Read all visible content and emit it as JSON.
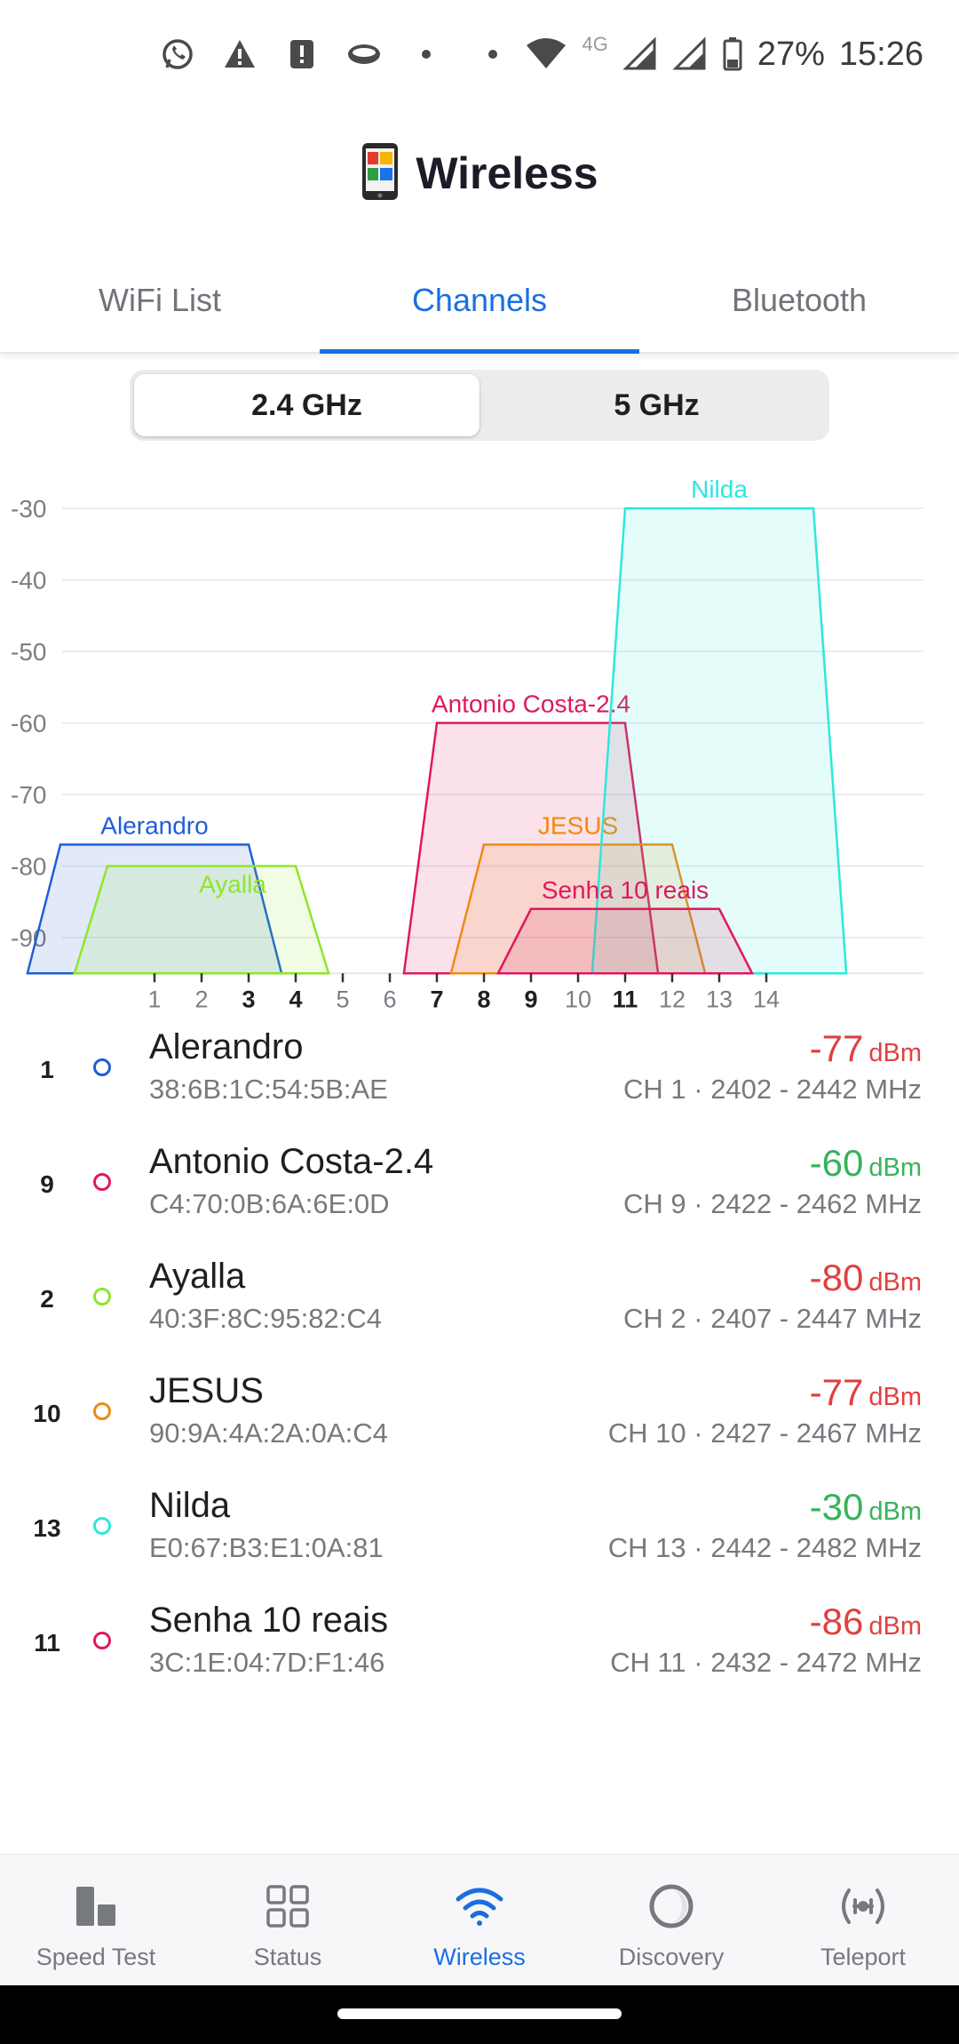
{
  "status_bar": {
    "battery": "27%",
    "time": "15:26",
    "network_type": "4G"
  },
  "header": {
    "title": "Wireless"
  },
  "tabs": [
    {
      "label": "WiFi List",
      "active": false
    },
    {
      "label": "Channels",
      "active": true
    },
    {
      "label": "Bluetooth",
      "active": false
    }
  ],
  "band_selector": [
    {
      "label": "2.4 GHz",
      "active": true
    },
    {
      "label": "5 GHz",
      "active": false
    }
  ],
  "chart_data": {
    "type": "area",
    "ylim": [
      -95,
      -30
    ],
    "yticks": [
      -30,
      -40,
      -50,
      -60,
      -70,
      -80,
      -90
    ],
    "xticks": [
      {
        "label": "1",
        "ch": 1,
        "bold": false
      },
      {
        "label": "2",
        "ch": 2,
        "bold": false
      },
      {
        "label": "3",
        "ch": 3,
        "bold": true
      },
      {
        "label": "4",
        "ch": 4,
        "bold": true
      },
      {
        "label": "5",
        "ch": 5,
        "bold": false
      },
      {
        "label": "6",
        "ch": 6,
        "bold": false
      },
      {
        "label": "7",
        "ch": 7,
        "bold": true
      },
      {
        "label": "8",
        "ch": 8,
        "bold": true
      },
      {
        "label": "9",
        "ch": 9,
        "bold": true
      },
      {
        "label": "10",
        "ch": 10,
        "bold": false
      },
      {
        "label": "11",
        "ch": 11,
        "bold": true
      },
      {
        "label": "12",
        "ch": 12,
        "bold": false
      },
      {
        "label": "13",
        "ch": 13,
        "bold": false
      },
      {
        "label": "14",
        "ch": 14,
        "bold": false
      }
    ],
    "series": [
      {
        "name": "Alerandro",
        "channel": 1,
        "signal": -77,
        "color": "#1e5ed8"
      },
      {
        "name": "Antonio Costa-2.4",
        "channel": 9,
        "signal": -60,
        "color": "#e0185f"
      },
      {
        "name": "Ayalla",
        "channel": 2,
        "signal": -80,
        "color": "#8ee62a"
      },
      {
        "name": "JESUS",
        "channel": 10,
        "signal": -77,
        "color": "#ef8a12"
      },
      {
        "name": "Nilda",
        "channel": 13,
        "signal": -30,
        "color": "#2ee7dc"
      },
      {
        "name": "Senha 10 reais",
        "channel": 11,
        "signal": -86,
        "color": "#e0185f"
      }
    ],
    "grid": true
  },
  "networks": [
    {
      "channel": "1",
      "ssid": "Alerandro",
      "mac": "38:6B:1C:54:5B:AE",
      "signal": "-77",
      "unit": "dBm",
      "freq": "CH 1 · 2402 - 2442 MHz",
      "color": "#1e5ed8",
      "signal_color": "#e04040"
    },
    {
      "channel": "9",
      "ssid": "Antonio Costa-2.4",
      "mac": "C4:70:0B:6A:6E:0D",
      "signal": "-60",
      "unit": "dBm",
      "freq": "CH 9 · 2422 - 2462 MHz",
      "color": "#e0185f",
      "signal_color": "#36b35a"
    },
    {
      "channel": "2",
      "ssid": "Ayalla",
      "mac": "40:3F:8C:95:82:C4",
      "signal": "-80",
      "unit": "dBm",
      "freq": "CH 2 · 2407 - 2447 MHz",
      "color": "#8ee62a",
      "signal_color": "#e04040"
    },
    {
      "channel": "10",
      "ssid": "JESUS",
      "mac": "90:9A:4A:2A:0A:C4",
      "signal": "-77",
      "unit": "dBm",
      "freq": "CH 10 · 2427 - 2467 MHz",
      "color": "#ef8a12",
      "signal_color": "#e04040"
    },
    {
      "channel": "13",
      "ssid": "Nilda",
      "mac": "E0:67:B3:E1:0A:81",
      "signal": "-30",
      "unit": "dBm",
      "freq": "CH 13 · 2442 - 2482 MHz",
      "color": "#2ee7dc",
      "signal_color": "#36b35a"
    },
    {
      "channel": "11",
      "ssid": "Senha 10 reais",
      "mac": "3C:1E:04:7D:F1:46",
      "signal": "-86",
      "unit": "dBm",
      "freq": "CH 11 · 2432 - 2472 MHz",
      "color": "#e0185f",
      "signal_color": "#e04040"
    }
  ],
  "bottom_nav": [
    {
      "label": "Speed Test",
      "icon": "speed-test-icon",
      "active": false
    },
    {
      "label": "Status",
      "icon": "grid-icon",
      "active": false
    },
    {
      "label": "Wireless",
      "icon": "wifi-icon",
      "active": true
    },
    {
      "label": "Discovery",
      "icon": "discovery-icon",
      "active": false
    },
    {
      "label": "Teleport",
      "icon": "teleport-icon",
      "active": false
    }
  ]
}
